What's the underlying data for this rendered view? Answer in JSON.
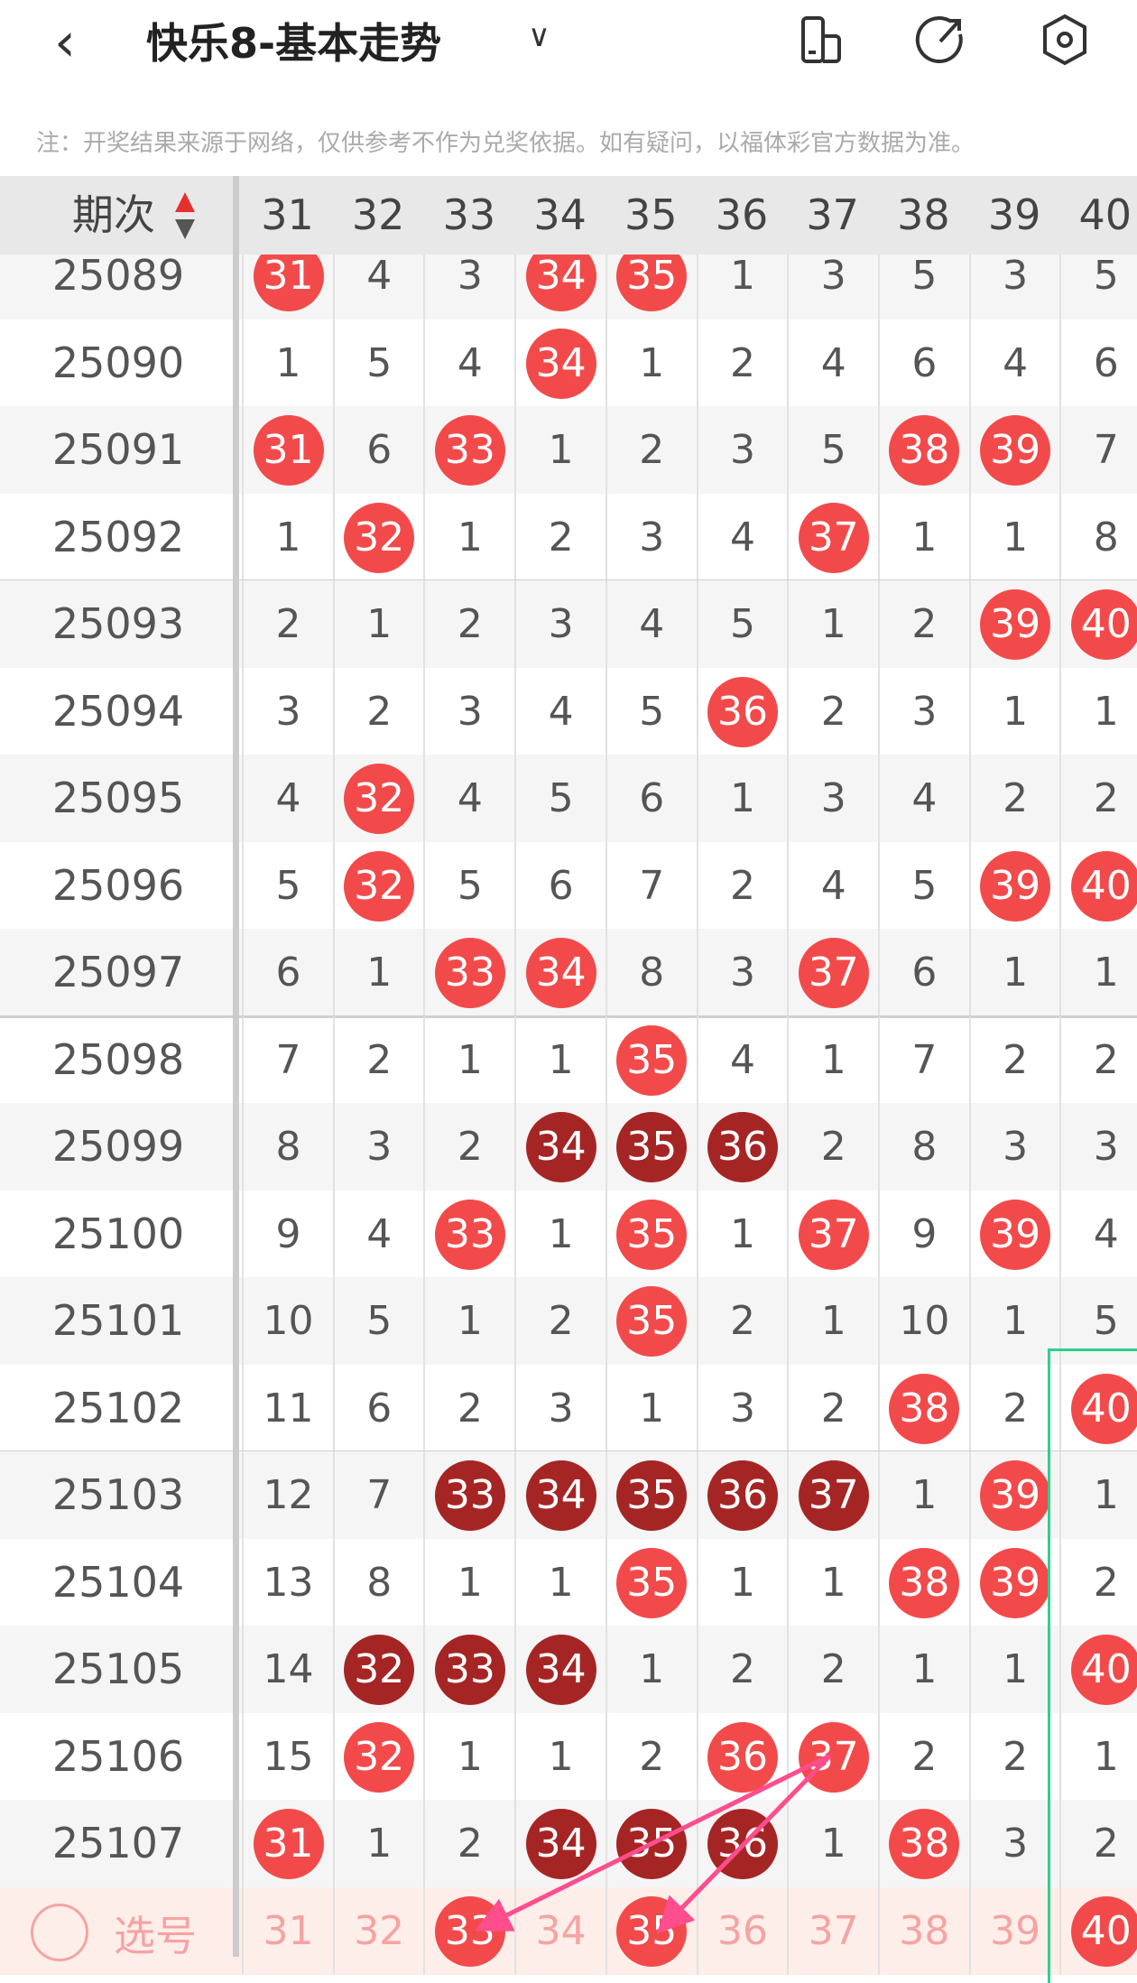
{
  "header": {
    "title": "快乐8-基本走势",
    "back_icon": "chevron-left-icon",
    "dropdown_icon": "chevron-down-icon",
    "actions": [
      "layout-toggle-icon",
      "share-icon",
      "settings-icon"
    ]
  },
  "note": "注：开奖结果来源于网络，仅供参考不作为兑奖依据。如有疑问，以福体彩官方数据为准。",
  "table": {
    "period_header": "期次",
    "columns": [
      "31",
      "32",
      "33",
      "34",
      "35",
      "36",
      "37",
      "38",
      "39",
      "40"
    ],
    "rows": [
      {
        "period": "25089",
        "cells": [
          "31",
          "4",
          "3",
          "34",
          "35",
          "1",
          "3",
          "5",
          "3",
          "5"
        ],
        "hits": [
          0,
          3,
          4
        ],
        "dark": []
      },
      {
        "period": "25090",
        "cells": [
          "1",
          "5",
          "4",
          "34",
          "1",
          "2",
          "4",
          "6",
          "4",
          "6"
        ],
        "hits": [
          3
        ],
        "dark": []
      },
      {
        "period": "25091",
        "cells": [
          "31",
          "6",
          "33",
          "1",
          "2",
          "3",
          "5",
          "38",
          "39",
          "7"
        ],
        "hits": [
          0,
          2,
          7,
          8
        ],
        "dark": []
      },
      {
        "period": "25092",
        "cells": [
          "1",
          "32",
          "1",
          "2",
          "3",
          "4",
          "37",
          "1",
          "1",
          "8"
        ],
        "hits": [
          1,
          6
        ],
        "dark": []
      },
      {
        "period": "25093",
        "cells": [
          "2",
          "1",
          "2",
          "3",
          "4",
          "5",
          "1",
          "2",
          "39",
          "40"
        ],
        "hits": [
          8,
          9
        ],
        "dark": []
      },
      {
        "period": "25094",
        "cells": [
          "3",
          "2",
          "3",
          "4",
          "5",
          "36",
          "2",
          "3",
          "1",
          "1"
        ],
        "hits": [
          5
        ],
        "dark": []
      },
      {
        "period": "25095",
        "cells": [
          "4",
          "32",
          "4",
          "5",
          "6",
          "1",
          "3",
          "4",
          "2",
          "2"
        ],
        "hits": [
          1
        ],
        "dark": []
      },
      {
        "period": "25096",
        "cells": [
          "5",
          "32",
          "5",
          "6",
          "7",
          "2",
          "4",
          "5",
          "39",
          "40"
        ],
        "hits": [
          1,
          8,
          9
        ],
        "dark": []
      },
      {
        "period": "25097",
        "cells": [
          "6",
          "1",
          "33",
          "34",
          "8",
          "3",
          "37",
          "6",
          "1",
          "1"
        ],
        "hits": [
          2,
          3,
          6
        ],
        "dark": []
      },
      {
        "period": "25098",
        "cells": [
          "7",
          "2",
          "1",
          "1",
          "35",
          "4",
          "1",
          "7",
          "2",
          "2"
        ],
        "hits": [
          4
        ],
        "dark": []
      },
      {
        "period": "25099",
        "cells": [
          "8",
          "3",
          "2",
          "34",
          "35",
          "36",
          "2",
          "8",
          "3",
          "3"
        ],
        "hits": [],
        "dark": [
          3,
          4,
          5
        ]
      },
      {
        "period": "25100",
        "cells": [
          "9",
          "4",
          "33",
          "1",
          "35",
          "1",
          "37",
          "9",
          "39",
          "4"
        ],
        "hits": [
          2,
          4,
          6,
          8
        ],
        "dark": []
      },
      {
        "period": "25101",
        "cells": [
          "10",
          "5",
          "1",
          "2",
          "35",
          "2",
          "1",
          "10",
          "1",
          "5"
        ],
        "hits": [
          4
        ],
        "dark": []
      },
      {
        "period": "25102",
        "cells": [
          "11",
          "6",
          "2",
          "3",
          "1",
          "3",
          "2",
          "38",
          "2",
          "40"
        ],
        "hits": [
          7,
          9
        ],
        "dark": []
      },
      {
        "period": "25103",
        "cells": [
          "12",
          "7",
          "33",
          "34",
          "35",
          "36",
          "37",
          "1",
          "39",
          "1"
        ],
        "hits": [
          8
        ],
        "dark": [
          2,
          3,
          4,
          5,
          6
        ]
      },
      {
        "period": "25104",
        "cells": [
          "13",
          "8",
          "1",
          "1",
          "35",
          "1",
          "1",
          "38",
          "39",
          "2"
        ],
        "hits": [
          4,
          7,
          8
        ],
        "dark": []
      },
      {
        "period": "25105",
        "cells": [
          "14",
          "32",
          "33",
          "34",
          "1",
          "2",
          "2",
          "1",
          "1",
          "40"
        ],
        "hits": [
          9
        ],
        "dark": [
          1,
          2,
          3
        ]
      },
      {
        "period": "25106",
        "cells": [
          "15",
          "32",
          "1",
          "1",
          "2",
          "36",
          "37",
          "2",
          "2",
          "1"
        ],
        "hits": [
          1,
          5,
          6
        ],
        "dark": []
      },
      {
        "period": "25107",
        "cells": [
          "31",
          "1",
          "2",
          "34",
          "35",
          "36",
          "1",
          "38",
          "3",
          "2"
        ],
        "hits": [
          0,
          7
        ],
        "dark": [
          3,
          4,
          5
        ]
      }
    ],
    "select_row": {
      "label": "选号",
      "cells": [
        "31",
        "32",
        "33",
        "34",
        "35",
        "36",
        "37",
        "38",
        "39",
        "40"
      ],
      "selected": [
        2,
        4,
        9
      ]
    }
  },
  "colors": {
    "hit_ball": "#f24a4a",
    "consecutive_ball": "#a52525",
    "arrow": "#ff4d8d",
    "highlight_box": "#2fcf8e",
    "select_row_bg": "#fdeee9"
  }
}
